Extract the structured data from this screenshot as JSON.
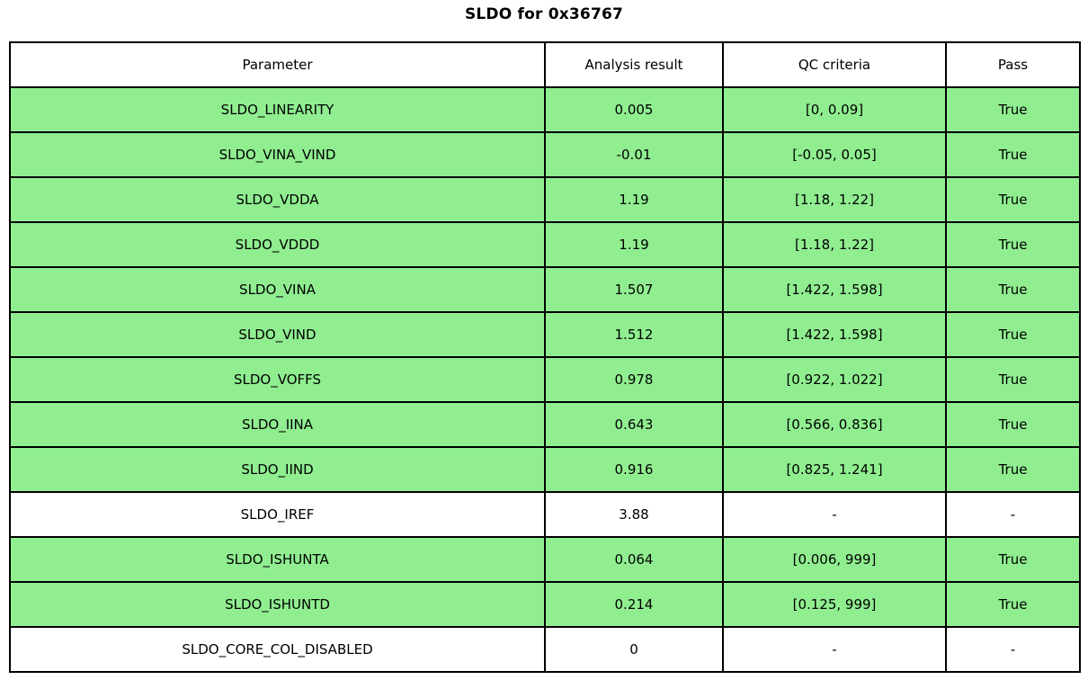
{
  "title": "SLDO for 0x36767",
  "colors": {
    "pass_row_green": "#90EE90",
    "no_criteria_white": "#FFFFFF",
    "border": "#000000",
    "text": "#000000"
  },
  "chart_data": {
    "type": "table",
    "title": "SLDO for 0x36767",
    "columns": [
      "Parameter",
      "Analysis result",
      "QC criteria",
      "Pass"
    ],
    "rows": [
      {
        "parameter": "SLDO_LINEARITY",
        "result": "0.005",
        "criteria": "[0, 0.09]",
        "pass": "True",
        "highlight": true
      },
      {
        "parameter": "SLDO_VINA_VIND",
        "result": "-0.01",
        "criteria": "[-0.05, 0.05]",
        "pass": "True",
        "highlight": true
      },
      {
        "parameter": "SLDO_VDDA",
        "result": "1.19",
        "criteria": "[1.18, 1.22]",
        "pass": "True",
        "highlight": true
      },
      {
        "parameter": "SLDO_VDDD",
        "result": "1.19",
        "criteria": "[1.18, 1.22]",
        "pass": "True",
        "highlight": true
      },
      {
        "parameter": "SLDO_VINA",
        "result": "1.507",
        "criteria": "[1.422, 1.598]",
        "pass": "True",
        "highlight": true
      },
      {
        "parameter": "SLDO_VIND",
        "result": "1.512",
        "criteria": "[1.422, 1.598]",
        "pass": "True",
        "highlight": true
      },
      {
        "parameter": "SLDO_VOFFS",
        "result": "0.978",
        "criteria": "[0.922, 1.022]",
        "pass": "True",
        "highlight": true
      },
      {
        "parameter": "SLDO_IINA",
        "result": "0.643",
        "criteria": "[0.566, 0.836]",
        "pass": "True",
        "highlight": true
      },
      {
        "parameter": "SLDO_IIND",
        "result": "0.916",
        "criteria": "[0.825, 1.241]",
        "pass": "True",
        "highlight": true
      },
      {
        "parameter": "SLDO_IREF",
        "result": "3.88",
        "criteria": "-",
        "pass": "-",
        "highlight": false
      },
      {
        "parameter": "SLDO_ISHUNTA",
        "result": "0.064",
        "criteria": "[0.006, 999]",
        "pass": "True",
        "highlight": true
      },
      {
        "parameter": "SLDO_ISHUNTD",
        "result": "0.214",
        "criteria": "[0.125, 999]",
        "pass": "True",
        "highlight": true
      },
      {
        "parameter": "SLDO_CORE_COL_DISABLED",
        "result": "0",
        "criteria": "-",
        "pass": "-",
        "highlight": false
      }
    ]
  }
}
